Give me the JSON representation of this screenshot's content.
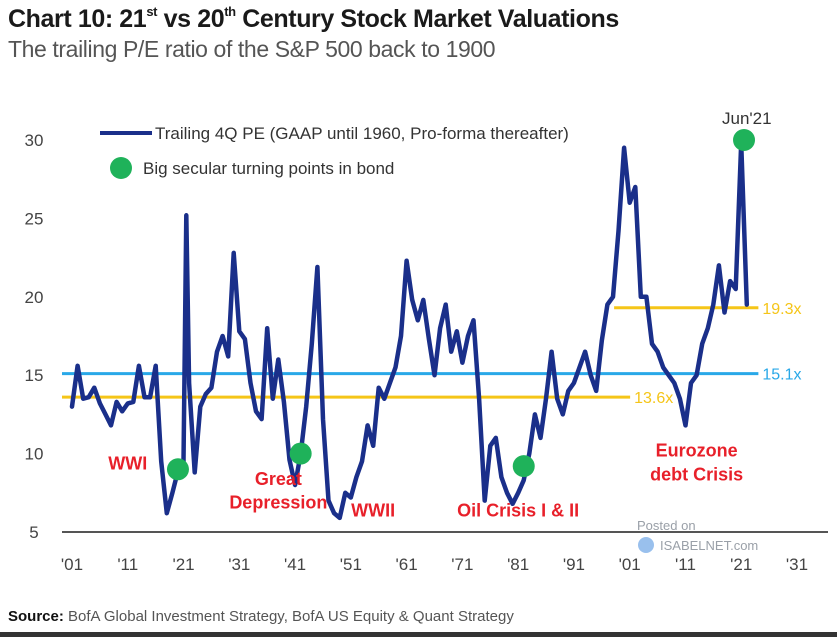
{
  "header": {
    "title_prefix": "Chart 10: 21",
    "title_sup1": "st",
    "title_mid": " vs 20",
    "title_sup2": "th",
    "title_suffix": " Century Stock Market Valuations",
    "subtitle": "The trailing P/E ratio of the S&P 500 back to 1900"
  },
  "footer": {
    "source_label": "Source:",
    "source_text": " BofA Global Investment Strategy, BofA US Equity & Quant Strategy"
  },
  "watermark": {
    "line1": "Posted on",
    "line2": "ISABELNET.com"
  },
  "colors": {
    "series": "#1a2f8a",
    "dots": "#1fb25a",
    "avg20": "#f5c518",
    "avg21": "#f5c518",
    "overall": "#29a8e8",
    "annotation": "#e8202a",
    "axis": "#555555"
  },
  "chart_data": {
    "type": "line",
    "title": "Chart 10: 21st vs 20th Century Stock Market Valuations",
    "subtitle": "The trailing P/E ratio of the S&P 500 back to 1900",
    "xlabel": "",
    "ylabel": "",
    "xlim": [
      1901,
      2031
    ],
    "ylim": [
      5,
      30
    ],
    "yticks": [
      30,
      25,
      20,
      15,
      10,
      5
    ],
    "xticks": [
      "'01",
      "'11",
      "'21",
      "'31",
      "'41",
      "'51",
      "'61",
      "'71",
      "'81",
      "'91",
      "'01",
      "'11",
      "'21",
      "'31"
    ],
    "xtick_years": [
      1901,
      1911,
      1921,
      1931,
      1941,
      1951,
      1961,
      1971,
      1981,
      1991,
      2001,
      2011,
      2021,
      2031
    ],
    "grid": false,
    "legend_position": "top-left",
    "legend": [
      {
        "type": "line",
        "label": "Trailing 4Q PE (GAAP until 1960, Pro-forma thereafter)"
      },
      {
        "type": "dot",
        "label": "Big secular turning points in bond"
      }
    ],
    "series": [
      {
        "name": "Trailing 4Q PE (GAAP until 1960, Pro-forma thereafter)",
        "x": [
          1901,
          1902,
          1903,
          1904,
          1905,
          1906,
          1907,
          1908,
          1909,
          1910,
          1911,
          1912,
          1913,
          1914,
          1915,
          1916,
          1917,
          1918,
          1919,
          1920,
          1921,
          1921.5,
          1922,
          1923,
          1924,
          1925,
          1926,
          1927,
          1928,
          1929,
          1930,
          1931,
          1932,
          1933,
          1934,
          1935,
          1936,
          1937,
          1938,
          1939,
          1940,
          1941,
          1942,
          1943,
          1944,
          1945,
          1946,
          1947,
          1948,
          1949,
          1950,
          1951,
          1952,
          1953,
          1954,
          1955,
          1956,
          1957,
          1958,
          1959,
          1960,
          1961,
          1962,
          1963,
          1964,
          1965,
          1966,
          1967,
          1968,
          1969,
          1970,
          1971,
          1972,
          1973,
          1974,
          1975,
          1976,
          1977,
          1978,
          1979,
          1980,
          1981,
          1982,
          1983,
          1984,
          1985,
          1986,
          1987,
          1988,
          1989,
          1990,
          1991,
          1992,
          1993,
          1994,
          1995,
          1996,
          1997,
          1998,
          1999,
          2000,
          2001,
          2002,
          2003,
          2004,
          2005,
          2006,
          2007,
          2008,
          2009,
          2010,
          2011,
          2012,
          2013,
          2014,
          2015,
          2016,
          2017,
          2018,
          2019,
          2020,
          2021,
          2022
        ],
        "values": [
          13,
          15.6,
          13.5,
          13.6,
          14.2,
          13.2,
          12.5,
          11.8,
          13.3,
          12.7,
          13.2,
          13.3,
          15.6,
          13.6,
          13.6,
          15.6,
          9.5,
          6.2,
          7.5,
          8.9,
          9.5,
          25.2,
          14.5,
          8.8,
          13.0,
          13.8,
          14.2,
          16.5,
          17.5,
          16.2,
          22.8,
          17.8,
          17.3,
          14.5,
          12.7,
          12.2,
          18.0,
          13.5,
          16.0,
          13.3,
          9.6,
          8.0,
          10.0,
          13.0,
          17.0,
          21.9,
          12.2,
          7.0,
          6.2,
          5.9,
          7.5,
          7.2,
          8.5,
          9.5,
          11.8,
          10.5,
          14.2,
          13.5,
          14.5,
          15.5,
          17.5,
          22.3,
          19.8,
          18.5,
          19.8,
          17.3,
          15.0,
          18.0,
          19.5,
          16.5,
          17.8,
          15.8,
          17.5,
          18.5,
          13.5,
          7.0,
          10.5,
          11.0,
          8.5,
          7.5,
          6.8,
          7.5,
          8.3,
          10.0,
          12.5,
          11.0,
          13.5,
          16.5,
          13.5,
          12.5,
          14.0,
          14.5,
          15.5,
          16.5,
          15.0,
          14.0,
          17.2,
          19.5,
          20.0,
          24.2,
          29.5,
          26.0,
          27.0,
          20.0,
          20.0,
          17.0,
          16.5,
          15.5,
          15.0,
          14.5,
          13.5,
          11.8,
          14.5,
          15.0,
          17.0,
          18.0,
          19.5,
          22.0,
          19.0,
          21.0,
          20.5,
          29.8,
          19.5
        ]
      }
    ],
    "turning_points": [
      {
        "year": 1920,
        "value": 9.0,
        "label": "WWI"
      },
      {
        "year": 1942,
        "value": 10.0,
        "label": "Great Depression"
      },
      {
        "year": 1982,
        "value": 9.2,
        "label": "Oil Crisis I & II"
      },
      {
        "year": 2021.5,
        "value": 30.0,
        "label": "Jun'21"
      }
    ],
    "reference_lines": [
      {
        "name": "20th century average",
        "value": 13.6,
        "label": "13.6x",
        "from": 1901,
        "to": 2000,
        "color": "#f5c518"
      },
      {
        "name": "Overall average",
        "value": 15.1,
        "label": "15.1x",
        "from": 1901,
        "to": 2023,
        "color": "#29a8e8"
      },
      {
        "name": "21st century average",
        "value": 19.3,
        "label": "19.3x",
        "from": 2000,
        "to": 2023,
        "color": "#f5c518"
      }
    ],
    "annotations": [
      {
        "text": "WWI",
        "year": 1911,
        "value": 9.0
      },
      {
        "text": "Great",
        "year": 1938,
        "value": 8.0
      },
      {
        "text": "Depression",
        "year": 1938,
        "value": 6.5
      },
      {
        "text": "WWII",
        "year": 1955,
        "value": 6.0
      },
      {
        "text": "Oil Crisis I & II",
        "year": 1981,
        "value": 6.0
      },
      {
        "text": "Eurozone",
        "year": 2013,
        "value": 9.8
      },
      {
        "text": "debt Crisis",
        "year": 2013,
        "value": 8.3
      }
    ],
    "peak_label": "Jun'21"
  }
}
